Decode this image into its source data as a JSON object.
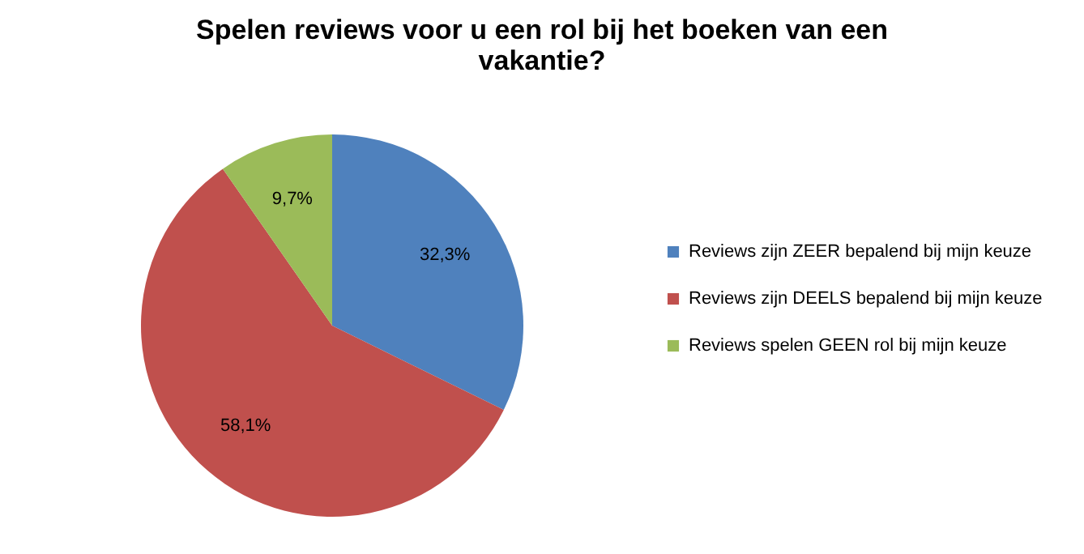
{
  "chart_data": {
    "type": "pie",
    "title": "Spelen reviews voor u een rol bij het boeken van een vakantie?",
    "categories": [
      "Reviews zijn ZEER bepalend bij mijn keuze",
      "Reviews zijn DEELS bepalend bij mijn keuze",
      "Reviews spelen GEEN rol bij mijn keuze"
    ],
    "values": [
      32.3,
      58.1,
      9.7
    ],
    "colors": [
      "#4f81bd",
      "#c0504d",
      "#9bbb59"
    ],
    "value_labels": [
      "32,3%",
      "58,1%",
      "9,7%"
    ],
    "legend": "right"
  }
}
